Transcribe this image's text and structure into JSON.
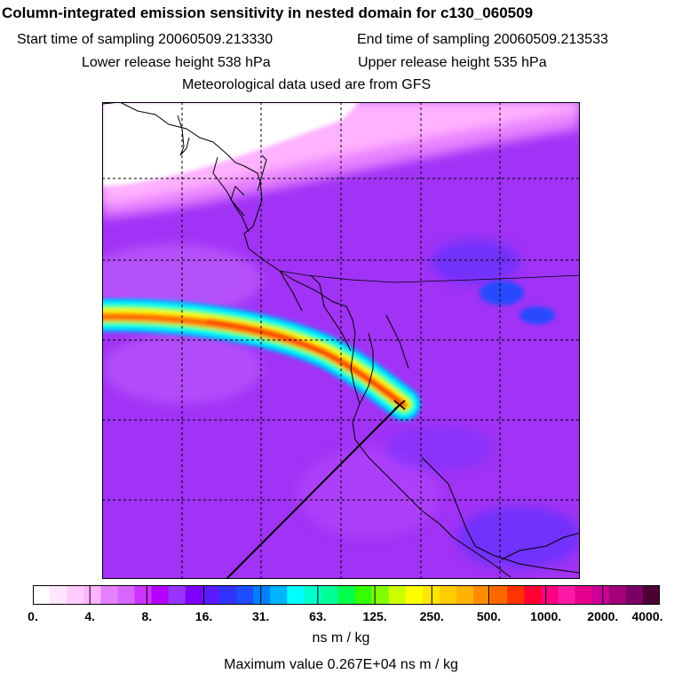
{
  "header": {
    "title": "Column-integrated emission sensitivity in nested domain for c130_060509",
    "start_label": "Start time of sampling 20060509.213330",
    "end_label": "End time of sampling 20060509.213533",
    "lower_label": "Lower release height  538 hPa",
    "upper_label": "Upper release height  535 hPa",
    "met_label": "Meteorological data used are from GFS"
  },
  "legend": {
    "ticks": [
      "0.",
      "4.",
      "8.",
      "16.",
      "31.",
      "63.",
      "125.",
      "250.",
      "500.",
      "1000.",
      "2000.",
      "4000."
    ],
    "colors": [
      "#ffffff",
      "#ffe6ff",
      "#ffccff",
      "#ffb3ff",
      "#e680ff",
      "#d966ff",
      "#cc33ff",
      "#b300ff",
      "#9933ff",
      "#7f00ff",
      "#5c1aff",
      "#3333ff",
      "#1f4dff",
      "#0080ff",
      "#00b3ff",
      "#00ffff",
      "#00ffcc",
      "#00ff99",
      "#00ff4d",
      "#33ff00",
      "#80ff00",
      "#ccff00",
      "#ffff00",
      "#ffe600",
      "#ffcc00",
      "#ffb300",
      "#ff8c00",
      "#ff6600",
      "#ff3300",
      "#ff0033",
      "#ff0080",
      "#ff1aa6",
      "#e6008c",
      "#cc0099",
      "#a3007a",
      "#7a0066",
      "#4d0033"
    ],
    "units": "ns m / kg",
    "max_value": "Maximum value  0.267E+04 ns m / kg"
  },
  "map": {
    "plume_colors": [
      "#00ffff",
      "#00ff4d",
      "#ffff00",
      "#ff3300"
    ],
    "background_color": "#9933ff"
  }
}
